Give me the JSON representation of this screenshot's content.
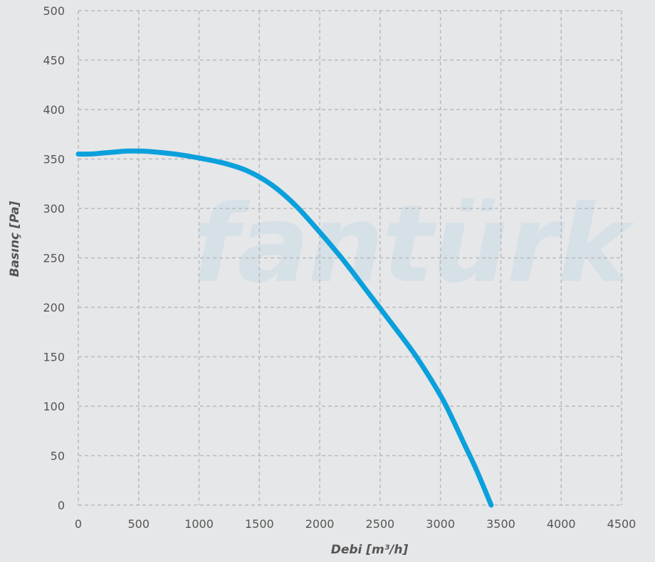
{
  "watermark": "fantürk",
  "chart_data": {
    "type": "line",
    "title": "",
    "xlabel": "Debi [m³/h]",
    "ylabel": "Basınç [Pa]",
    "xlim": [
      0,
      4500
    ],
    "ylim": [
      0,
      500
    ],
    "xticks": [
      "0",
      "500",
      "1000",
      "1500",
      "2000",
      "2500",
      "3000",
      "3500",
      "4000",
      "4500"
    ],
    "yticks": [
      "0",
      "50",
      "100",
      "150",
      "200",
      "250",
      "300",
      "350",
      "400",
      "450",
      "500"
    ],
    "grid": true,
    "grid_style": "dashed",
    "series": [
      {
        "color": "#0aa0dc",
        "x": [
          0,
          100,
          200,
          300,
          400,
          500,
          600,
          800,
          1000,
          1200,
          1400,
          1600,
          1800,
          2000,
          2200,
          2400,
          2600,
          2800,
          3000,
          3100,
          3200,
          3300,
          3420
        ],
        "y": [
          355,
          355,
          356,
          357,
          358,
          358,
          357.5,
          355,
          351,
          346,
          338,
          324,
          303,
          276,
          247,
          215,
          183,
          150,
          111,
          87,
          61,
          35,
          0
        ]
      }
    ]
  }
}
